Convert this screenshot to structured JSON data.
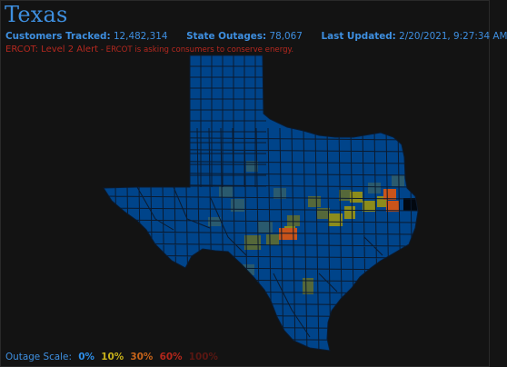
{
  "header": {
    "title": "Texas",
    "customers_label": "Customers Tracked:",
    "customers_value": "12,482,314",
    "outages_label": "State Outages:",
    "outages_value": "78,067",
    "updated_label": "Last Updated:",
    "updated_value": "2/20/2021, 9:27:34 AM"
  },
  "alert": {
    "title": "ERCOT: Level 2 Alert",
    "message": " - ERCOT is asking consumers to conserve energy."
  },
  "legend": {
    "label": "Outage Scale:",
    "levels": [
      {
        "text": "0%",
        "color": "#2e8ee8"
      },
      {
        "text": "10%",
        "color": "#c9b21a"
      },
      {
        "text": "30%",
        "color": "#c8641a"
      },
      {
        "text": "60%",
        "color": "#b3261b"
      },
      {
        "text": "100%",
        "color": "#5a1712"
      }
    ]
  },
  "map": {
    "state_fill": "#00448a",
    "county_line": "#0b1a2e",
    "highlight_colors": {
      "teal": "#2a5a6e",
      "olive": "#55683a",
      "yellow": "#8c8c1c",
      "orange": "#c9541a",
      "dark": "#020810"
    }
  }
}
